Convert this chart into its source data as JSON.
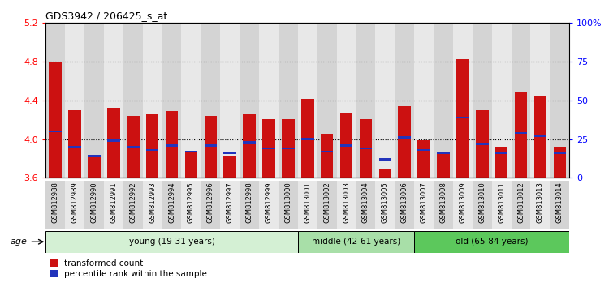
{
  "title": "GDS3942 / 206425_s_at",
  "samples": [
    "GSM812988",
    "GSM812989",
    "GSM812990",
    "GSM812991",
    "GSM812992",
    "GSM812993",
    "GSM812994",
    "GSM812995",
    "GSM812996",
    "GSM812997",
    "GSM812998",
    "GSM812999",
    "GSM813000",
    "GSM813001",
    "GSM813002",
    "GSM813003",
    "GSM813004",
    "GSM813005",
    "GSM813006",
    "GSM813007",
    "GSM813008",
    "GSM813009",
    "GSM813010",
    "GSM813011",
    "GSM813012",
    "GSM813013",
    "GSM813014"
  ],
  "red_values": [
    4.79,
    4.3,
    3.83,
    4.32,
    4.24,
    4.26,
    4.29,
    3.87,
    4.24,
    3.83,
    4.26,
    4.21,
    4.21,
    4.42,
    4.06,
    4.27,
    4.21,
    3.7,
    4.34,
    3.99,
    3.87,
    4.83,
    4.3,
    3.92,
    4.49,
    4.44,
    3.92
  ],
  "blue_pct": [
    30,
    20,
    14,
    24,
    20,
    18,
    21,
    17,
    21,
    16,
    23,
    19,
    19,
    25,
    17,
    21,
    19,
    12,
    26,
    18,
    16,
    39,
    22,
    16,
    29,
    27,
    16
  ],
  "ymin": 3.6,
  "ymax": 5.2,
  "y2min": 0,
  "y2max": 100,
  "groups": [
    {
      "label": "young (19-31 years)",
      "start": 0,
      "end": 13,
      "color": "#d4f0d4"
    },
    {
      "label": "middle (42-61 years)",
      "start": 13,
      "end": 19,
      "color": "#a8dfa8"
    },
    {
      "label": "old (65-84 years)",
      "start": 19,
      "end": 27,
      "color": "#5cc85c"
    }
  ],
  "bar_color": "#cc1111",
  "blue_color": "#2233bb",
  "yticks": [
    3.6,
    4.0,
    4.4,
    4.8,
    5.2
  ],
  "y2ticks": [
    0,
    25,
    50,
    75,
    100
  ],
  "y2ticklabels": [
    "0",
    "25",
    "50",
    "75",
    "100%"
  ]
}
